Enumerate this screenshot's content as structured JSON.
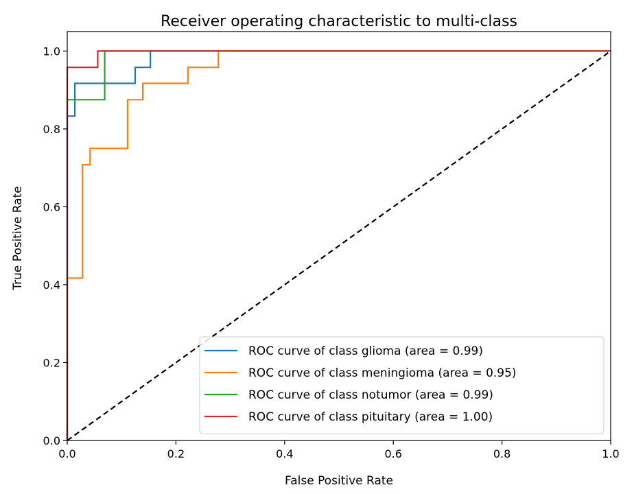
{
  "chart_data": {
    "type": "line",
    "title": "Receiver operating characteristic to multi-class",
    "xlabel": "False Positive Rate",
    "ylabel": "True Positive Rate",
    "xlim": [
      0.0,
      1.0
    ],
    "ylim": [
      0.0,
      1.05
    ],
    "xticks": [
      "0.0",
      "0.2",
      "0.4",
      "0.6",
      "0.8",
      "1.0"
    ],
    "yticks": [
      "0.0",
      "0.2",
      "0.4",
      "0.6",
      "0.8",
      "1.0"
    ],
    "grid": false,
    "legend_position": "lower-right",
    "series": [
      {
        "name": "ROC curve of class glioma (area = 0.99)",
        "color": "#1f77b4",
        "x": [
          0.0,
          0.0,
          0.014,
          0.014,
          0.125,
          0.125,
          0.153,
          0.153,
          1.0
        ],
        "y": [
          0.0,
          0.833,
          0.833,
          0.917,
          0.917,
          0.958,
          0.958,
          1.0,
          1.0
        ]
      },
      {
        "name": "ROC curve of class meningioma (area = 0.95)",
        "color": "#ff7f0e",
        "x": [
          0.0,
          0.0,
          0.028,
          0.028,
          0.042,
          0.042,
          0.111,
          0.111,
          0.139,
          0.139,
          0.222,
          0.222,
          0.278,
          0.278,
          1.0
        ],
        "y": [
          0.0,
          0.417,
          0.417,
          0.708,
          0.708,
          0.75,
          0.75,
          0.875,
          0.875,
          0.917,
          0.917,
          0.958,
          0.958,
          1.0,
          1.0
        ]
      },
      {
        "name": "ROC curve of class notumor (area = 0.99)",
        "color": "#2ca02c",
        "x": [
          0.0,
          0.0,
          0.069,
          0.069,
          1.0
        ],
        "y": [
          0.0,
          0.875,
          0.875,
          1.0,
          1.0
        ]
      },
      {
        "name": "ROC curve of class pituitary (area = 1.00)",
        "color": "#d62728",
        "x": [
          0.0,
          0.0,
          0.056,
          0.056,
          1.0
        ],
        "y": [
          0.0,
          0.958,
          0.958,
          1.0,
          1.0
        ]
      }
    ],
    "reference_line": {
      "x": [
        0.0,
        1.0
      ],
      "y": [
        0.0,
        1.0
      ],
      "color": "#000000",
      "style": "dashed"
    }
  }
}
